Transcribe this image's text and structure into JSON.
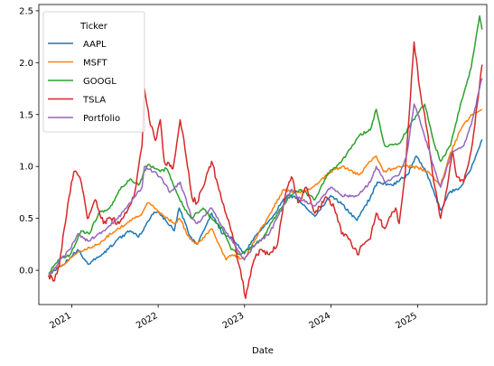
{
  "chart_data": {
    "type": "line",
    "xlabel": "Date",
    "ylabel": "",
    "xlim": [
      "2020-08-15",
      "2025-10-20"
    ],
    "ylim": [
      -0.33,
      2.56
    ],
    "y_ticks": [
      0.0,
      0.5,
      1.0,
      1.5,
      2.0,
      2.5
    ],
    "y_tick_labels": [
      "0.0",
      "0.5",
      "1.0",
      "1.5",
      "2.0",
      "2.5"
    ],
    "x_ticks": [
      "2021-01-01",
      "2022-01-01",
      "2023-01-01",
      "2024-01-01",
      "2025-01-01"
    ],
    "x_tick_labels": [
      "2021",
      "2022",
      "2023",
      "2024",
      "2025"
    ],
    "grid": false,
    "legend": {
      "title": "Ticker",
      "placement": "top-left"
    },
    "series": [
      {
        "name": "AAPL",
        "color": "#1f77b4",
        "points": [
          [
            "2020-09-25",
            -0.05
          ],
          [
            "2020-10-20",
            0.0
          ],
          [
            "2020-11-20",
            0.04
          ],
          [
            "2020-12-25",
            0.12
          ],
          [
            "2021-01-26",
            0.2
          ],
          [
            "2021-03-10",
            0.06
          ],
          [
            "2021-05-15",
            0.16
          ],
          [
            "2021-07-15",
            0.3
          ],
          [
            "2021-09-05",
            0.38
          ],
          [
            "2021-10-10",
            0.32
          ],
          [
            "2021-12-15",
            0.56
          ],
          [
            "2022-01-05",
            0.56
          ],
          [
            "2022-03-10",
            0.38
          ],
          [
            "2022-03-31",
            0.6
          ],
          [
            "2022-05-15",
            0.33
          ],
          [
            "2022-06-15",
            0.25
          ],
          [
            "2022-08-15",
            0.55
          ],
          [
            "2022-09-30",
            0.35
          ],
          [
            "2022-11-15",
            0.3
          ],
          [
            "2022-12-31",
            0.16
          ],
          [
            "2023-02-15",
            0.33
          ],
          [
            "2023-04-15",
            0.48
          ],
          [
            "2023-06-30",
            0.72
          ],
          [
            "2023-08-10",
            0.7
          ],
          [
            "2023-10-25",
            0.52
          ],
          [
            "2023-12-31",
            0.72
          ],
          [
            "2024-02-15",
            0.64
          ],
          [
            "2024-04-20",
            0.48
          ],
          [
            "2024-06-15",
            0.7
          ],
          [
            "2024-07-15",
            0.85
          ],
          [
            "2024-09-15",
            0.82
          ],
          [
            "2024-11-20",
            0.92
          ],
          [
            "2024-12-26",
            1.1
          ],
          [
            "2025-01-31",
            0.98
          ],
          [
            "2025-03-15",
            0.72
          ],
          [
            "2025-04-08",
            0.58
          ],
          [
            "2025-05-15",
            0.75
          ],
          [
            "2025-07-01",
            0.8
          ],
          [
            "2025-08-15",
            0.98
          ],
          [
            "2025-09-30",
            1.26
          ]
        ]
      },
      {
        "name": "MSFT",
        "color": "#ff7f0e",
        "points": [
          [
            "2020-09-25",
            -0.04
          ],
          [
            "2020-10-20",
            0.02
          ],
          [
            "2020-11-25",
            0.05
          ],
          [
            "2020-12-25",
            0.12
          ],
          [
            "2021-02-10",
            0.18
          ],
          [
            "2021-04-20",
            0.25
          ],
          [
            "2021-06-15",
            0.35
          ],
          [
            "2021-08-20",
            0.45
          ],
          [
            "2021-10-25",
            0.55
          ],
          [
            "2021-11-20",
            0.65
          ],
          [
            "2022-01-10",
            0.55
          ],
          [
            "2022-03-10",
            0.45
          ],
          [
            "2022-04-01",
            0.5
          ],
          [
            "2022-05-15",
            0.3
          ],
          [
            "2022-06-15",
            0.25
          ],
          [
            "2022-08-15",
            0.4
          ],
          [
            "2022-10-15",
            0.1
          ],
          [
            "2022-11-10",
            0.15
          ],
          [
            "2022-12-31",
            0.1
          ],
          [
            "2023-02-15",
            0.3
          ],
          [
            "2023-04-20",
            0.55
          ],
          [
            "2023-06-15",
            0.78
          ],
          [
            "2023-08-15",
            0.75
          ],
          [
            "2023-10-15",
            0.8
          ],
          [
            "2023-12-31",
            0.95
          ],
          [
            "2024-02-15",
            1.0
          ],
          [
            "2024-04-30",
            0.92
          ],
          [
            "2024-06-15",
            1.05
          ],
          [
            "2024-07-10",
            1.1
          ],
          [
            "2024-08-10",
            0.95
          ],
          [
            "2024-10-15",
            1.0
          ],
          [
            "2024-12-15",
            1.0
          ],
          [
            "2025-02-15",
            0.95
          ],
          [
            "2025-04-08",
            0.82
          ],
          [
            "2025-05-15",
            1.1
          ],
          [
            "2025-07-01",
            1.35
          ],
          [
            "2025-08-15",
            1.5
          ],
          [
            "2025-09-30",
            1.55
          ]
        ]
      },
      {
        "name": "GOOGL",
        "color": "#2ca02c",
        "points": [
          [
            "2020-09-25",
            -0.03
          ],
          [
            "2020-10-20",
            0.05
          ],
          [
            "2020-11-20",
            0.12
          ],
          [
            "2020-12-25",
            0.15
          ],
          [
            "2021-02-10",
            0.38
          ],
          [
            "2021-03-15",
            0.35
          ],
          [
            "2021-04-25",
            0.55
          ],
          [
            "2021-06-10",
            0.6
          ],
          [
            "2021-07-25",
            0.78
          ],
          [
            "2021-09-05",
            0.88
          ],
          [
            "2021-10-10",
            0.82
          ],
          [
            "2021-11-20",
            1.02
          ],
          [
            "2022-01-10",
            0.95
          ],
          [
            "2022-02-05",
            0.98
          ],
          [
            "2022-03-15",
            0.78
          ],
          [
            "2022-04-25",
            0.58
          ],
          [
            "2022-05-20",
            0.5
          ],
          [
            "2022-07-10",
            0.6
          ],
          [
            "2022-08-15",
            0.5
          ],
          [
            "2022-09-30",
            0.4
          ],
          [
            "2022-11-05",
            0.2
          ],
          [
            "2022-12-15",
            0.15
          ],
          [
            "2023-01-15",
            0.2
          ],
          [
            "2023-03-15",
            0.3
          ],
          [
            "2023-05-20",
            0.55
          ],
          [
            "2023-07-15",
            0.72
          ],
          [
            "2023-08-25",
            0.78
          ],
          [
            "2023-10-25",
            0.68
          ],
          [
            "2023-12-15",
            0.92
          ],
          [
            "2024-02-15",
            1.05
          ],
          [
            "2024-04-30",
            1.3
          ],
          [
            "2024-06-15",
            1.35
          ],
          [
            "2024-07-10",
            1.55
          ],
          [
            "2024-08-15",
            1.2
          ],
          [
            "2024-10-15",
            1.22
          ],
          [
            "2024-11-30",
            1.4
          ],
          [
            "2025-01-31",
            1.6
          ],
          [
            "2025-03-15",
            1.2
          ],
          [
            "2025-04-08",
            1.05
          ],
          [
            "2025-05-20",
            1.2
          ],
          [
            "2025-07-01",
            1.6
          ],
          [
            "2025-08-15",
            1.95
          ],
          [
            "2025-09-20",
            2.45
          ],
          [
            "2025-09-30",
            2.32
          ]
        ]
      },
      {
        "name": "TSLA",
        "color": "#d62728",
        "points": [
          [
            "2020-09-25",
            -0.05
          ],
          [
            "2020-10-20",
            -0.1
          ],
          [
            "2020-11-10",
            0.05
          ],
          [
            "2020-11-30",
            0.4
          ],
          [
            "2020-12-20",
            0.7
          ],
          [
            "2021-01-10",
            0.95
          ],
          [
            "2021-01-26",
            0.92
          ],
          [
            "2021-02-10",
            0.85
          ],
          [
            "2021-03-08",
            0.5
          ],
          [
            "2021-04-10",
            0.68
          ],
          [
            "2021-05-15",
            0.45
          ],
          [
            "2021-06-15",
            0.5
          ],
          [
            "2021-07-20",
            0.45
          ],
          [
            "2021-08-20",
            0.55
          ],
          [
            "2021-09-20",
            0.7
          ],
          [
            "2021-10-25",
            1.2
          ],
          [
            "2021-11-04",
            1.75
          ],
          [
            "2021-11-25",
            1.45
          ],
          [
            "2021-12-20",
            1.25
          ],
          [
            "2022-01-10",
            1.45
          ],
          [
            "2022-01-27",
            1.05
          ],
          [
            "2022-02-20",
            1.0
          ],
          [
            "2022-03-05",
            0.98
          ],
          [
            "2022-04-04",
            1.45
          ],
          [
            "2022-05-10",
            0.95
          ],
          [
            "2022-05-24",
            0.7
          ],
          [
            "2022-06-15",
            0.65
          ],
          [
            "2022-08-15",
            1.05
          ],
          [
            "2022-09-30",
            0.65
          ],
          [
            "2022-10-20",
            0.5
          ],
          [
            "2022-11-20",
            0.25
          ],
          [
            "2022-12-15",
            0.0
          ],
          [
            "2023-01-05",
            -0.27
          ],
          [
            "2023-02-10",
            0.1
          ],
          [
            "2023-03-10",
            0.2
          ],
          [
            "2023-04-15",
            0.15
          ],
          [
            "2023-05-20",
            0.25
          ],
          [
            "2023-06-20",
            0.7
          ],
          [
            "2023-07-18",
            0.9
          ],
          [
            "2023-08-15",
            0.65
          ],
          [
            "2023-09-18",
            0.8
          ],
          [
            "2023-10-25",
            0.55
          ],
          [
            "2023-12-15",
            0.7
          ],
          [
            "2024-01-15",
            0.6
          ],
          [
            "2024-02-15",
            0.35
          ],
          [
            "2024-03-15",
            0.3
          ],
          [
            "2024-04-22",
            0.15
          ],
          [
            "2024-05-15",
            0.25
          ],
          [
            "2024-06-15",
            0.3
          ],
          [
            "2024-07-10",
            0.55
          ],
          [
            "2024-08-15",
            0.4
          ],
          [
            "2024-09-30",
            0.6
          ],
          [
            "2024-10-15",
            0.45
          ],
          [
            "2024-11-10",
            0.95
          ],
          [
            "2024-12-17",
            2.2
          ],
          [
            "2025-01-10",
            1.75
          ],
          [
            "2025-02-10",
            1.35
          ],
          [
            "2025-03-10",
            0.85
          ],
          [
            "2025-04-08",
            0.5
          ],
          [
            "2025-05-01",
            0.75
          ],
          [
            "2025-05-28",
            1.15
          ],
          [
            "2025-06-15",
            0.9
          ],
          [
            "2025-07-15",
            0.85
          ],
          [
            "2025-08-15",
            1.15
          ],
          [
            "2025-09-10",
            1.6
          ],
          [
            "2025-09-30",
            1.98
          ]
        ]
      },
      {
        "name": "Portfolio",
        "color": "#9467bd",
        "points": [
          [
            "2020-09-25",
            -0.05
          ],
          [
            "2020-10-20",
            0.02
          ],
          [
            "2020-11-20",
            0.12
          ],
          [
            "2020-12-25",
            0.2
          ],
          [
            "2021-01-26",
            0.35
          ],
          [
            "2021-03-10",
            0.28
          ],
          [
            "2021-05-15",
            0.38
          ],
          [
            "2021-07-15",
            0.5
          ],
          [
            "2021-08-20",
            0.6
          ],
          [
            "2021-09-20",
            0.7
          ],
          [
            "2021-10-25",
            0.8
          ],
          [
            "2021-11-04",
            1.0
          ],
          [
            "2021-12-15",
            0.95
          ],
          [
            "2022-01-10",
            0.9
          ],
          [
            "2022-02-20",
            0.75
          ],
          [
            "2022-04-04",
            0.85
          ],
          [
            "2022-05-24",
            0.5
          ],
          [
            "2022-06-15",
            0.45
          ],
          [
            "2022-08-15",
            0.6
          ],
          [
            "2022-09-30",
            0.42
          ],
          [
            "2022-11-10",
            0.28
          ],
          [
            "2022-12-31",
            0.1
          ],
          [
            "2023-02-15",
            0.25
          ],
          [
            "2023-04-15",
            0.35
          ],
          [
            "2023-06-20",
            0.65
          ],
          [
            "2023-07-18",
            0.78
          ],
          [
            "2023-08-15",
            0.7
          ],
          [
            "2023-10-25",
            0.62
          ],
          [
            "2023-12-31",
            0.8
          ],
          [
            "2024-02-15",
            0.72
          ],
          [
            "2024-04-22",
            0.72
          ],
          [
            "2024-06-15",
            0.85
          ],
          [
            "2024-07-10",
            1.0
          ],
          [
            "2024-08-15",
            0.85
          ],
          [
            "2024-10-15",
            0.92
          ],
          [
            "2024-11-15",
            1.1
          ],
          [
            "2024-12-17",
            1.6
          ],
          [
            "2025-01-10",
            1.45
          ],
          [
            "2025-03-10",
            1.0
          ],
          [
            "2025-04-08",
            0.8
          ],
          [
            "2025-05-28",
            1.15
          ],
          [
            "2025-07-15",
            1.2
          ],
          [
            "2025-08-15",
            1.4
          ],
          [
            "2025-09-30",
            1.85
          ]
        ]
      }
    ]
  }
}
